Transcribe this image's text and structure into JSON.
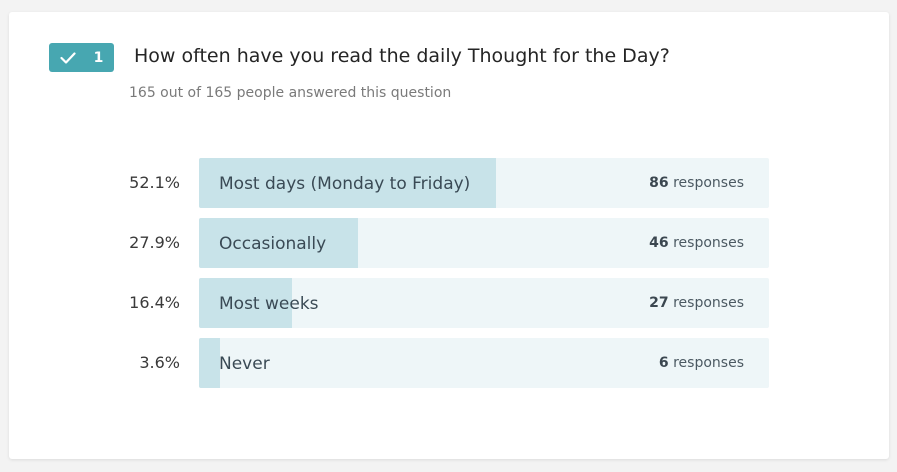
{
  "question": {
    "number": "1",
    "title": "How often have you read the daily Thought for the Day?",
    "subtitle": "165 out of 165 people answered this question",
    "badge_icon": "check-icon",
    "accent_color": "#47a7b1"
  },
  "responses_word": "responses",
  "chart_data": {
    "type": "bar",
    "orientation": "horizontal",
    "categories": [
      "Most days (Monday to Friday)",
      "Occasionally",
      "Most weeks",
      "Never"
    ],
    "percentages": [
      "52.1%",
      "27.9%",
      "16.4%",
      "3.6%"
    ],
    "values": [
      86,
      46,
      27,
      6
    ],
    "fractions": [
      0.521,
      0.279,
      0.164,
      0.036
    ],
    "colors": {
      "fill": "#c8e3e9",
      "track": "#eef6f8"
    }
  }
}
